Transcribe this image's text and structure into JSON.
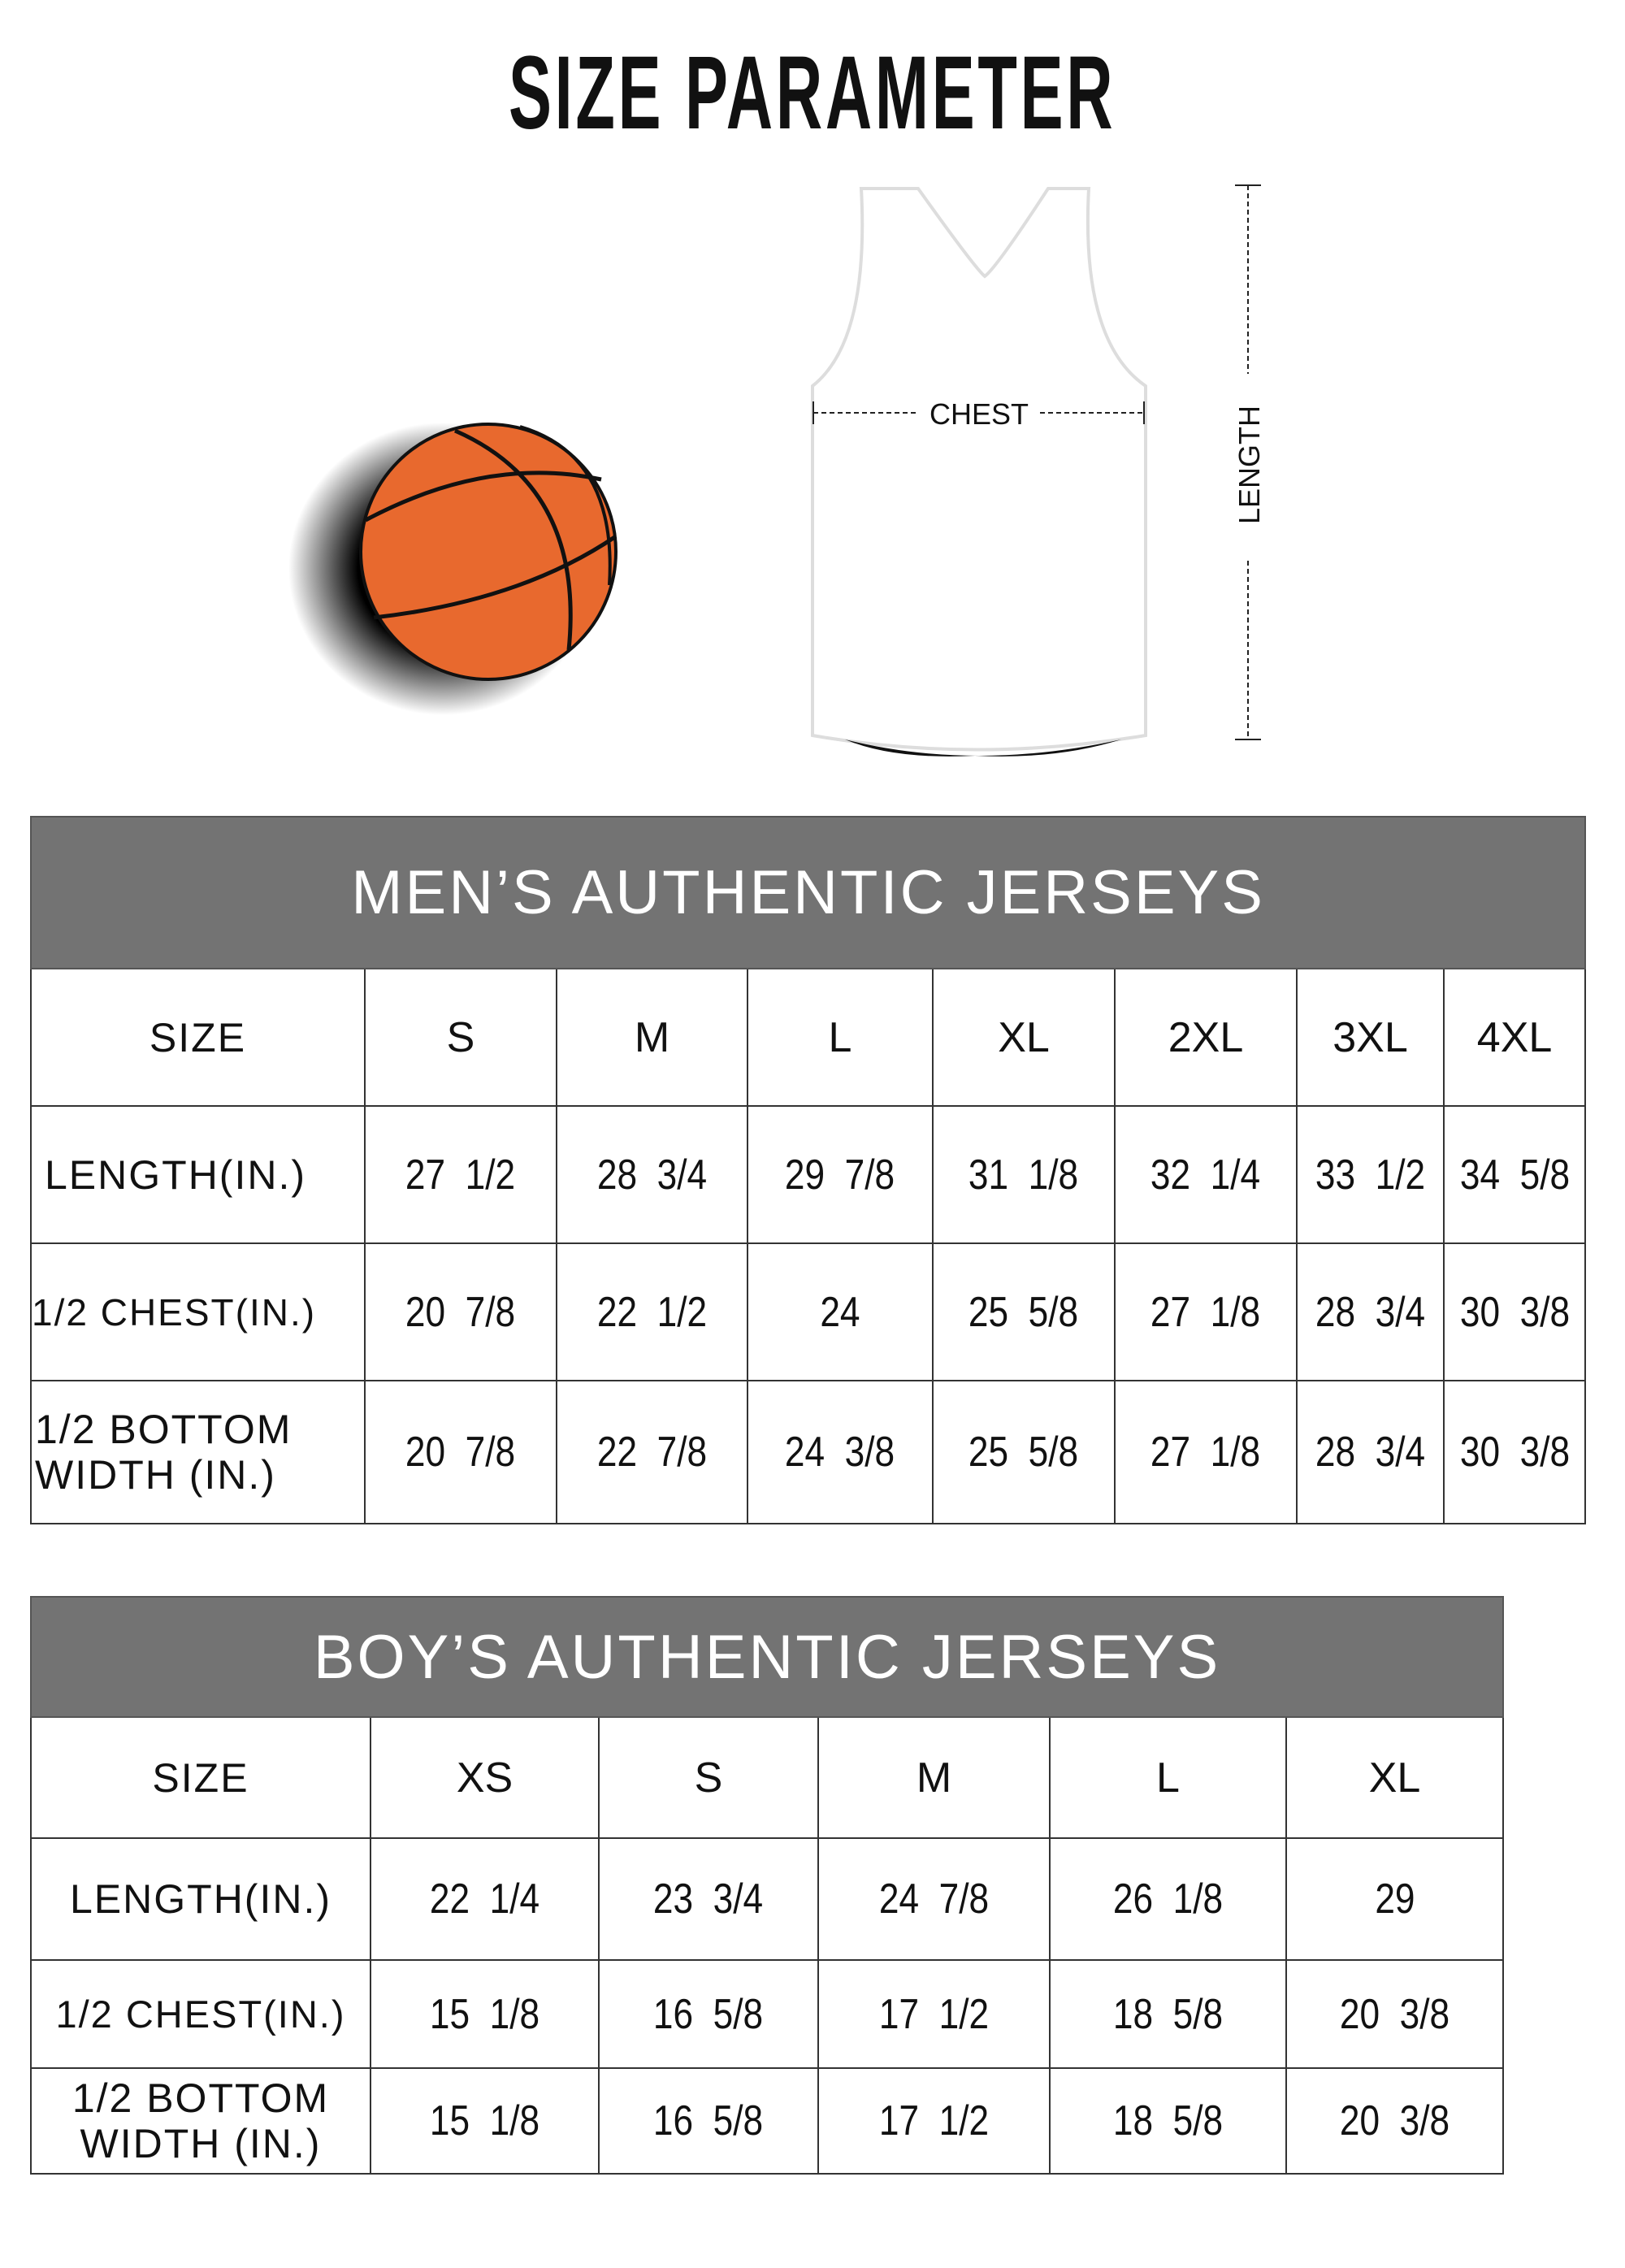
{
  "title": "SIZE PARAMETER",
  "diagram": {
    "chest_label": "CHEST",
    "length_label": "LENGTH",
    "colors": {
      "ball": "#E8692E",
      "header": "#737373"
    }
  },
  "mens": {
    "title": "MEN’S AUTHENTIC JERSEYS",
    "headers": [
      "SIZE",
      "S",
      "M",
      "L",
      "XL",
      "2XL",
      "3XL",
      "4XL"
    ],
    "rows": [
      {
        "label": "LENGTH(IN.)",
        "values": [
          "27  1/2",
          "28  3/4",
          "29  7/8",
          "31  1/8",
          "32  1/4",
          "33  1/2",
          "34  5/8"
        ]
      },
      {
        "label": "1/2 CHEST(IN.)",
        "values": [
          "20  7/8",
          "22  1/2",
          "24",
          "25  5/8",
          "27  1/8",
          "28  3/4",
          "30  3/8"
        ]
      },
      {
        "label": "1/2 BOTTOM WIDTH  (IN.)",
        "values": [
          "20  7/8",
          "22  7/8",
          "24  3/8",
          "25  5/8",
          "27  1/8",
          "28  3/4",
          "30  3/8"
        ]
      }
    ]
  },
  "boys": {
    "title": "BOY’S AUTHENTIC JERSEYS",
    "headers": [
      "SIZE",
      "XS",
      "S",
      "M",
      "L",
      "XL"
    ],
    "rows": [
      {
        "label": "LENGTH(IN.)",
        "values": [
          "22  1/4",
          "23  3/4",
          "24  7/8",
          "26  1/8",
          "29"
        ]
      },
      {
        "label": "1/2 CHEST(IN.)",
        "values": [
          "15  1/8",
          "16  5/8",
          "17  1/2",
          "18  5/8",
          "20  3/8"
        ]
      },
      {
        "label": "1/2 BOTTOM WIDTH  (IN.)",
        "values": [
          "15  1/8",
          "16  5/8",
          "17  1/2",
          "18  5/8",
          "20  3/8"
        ]
      }
    ]
  }
}
